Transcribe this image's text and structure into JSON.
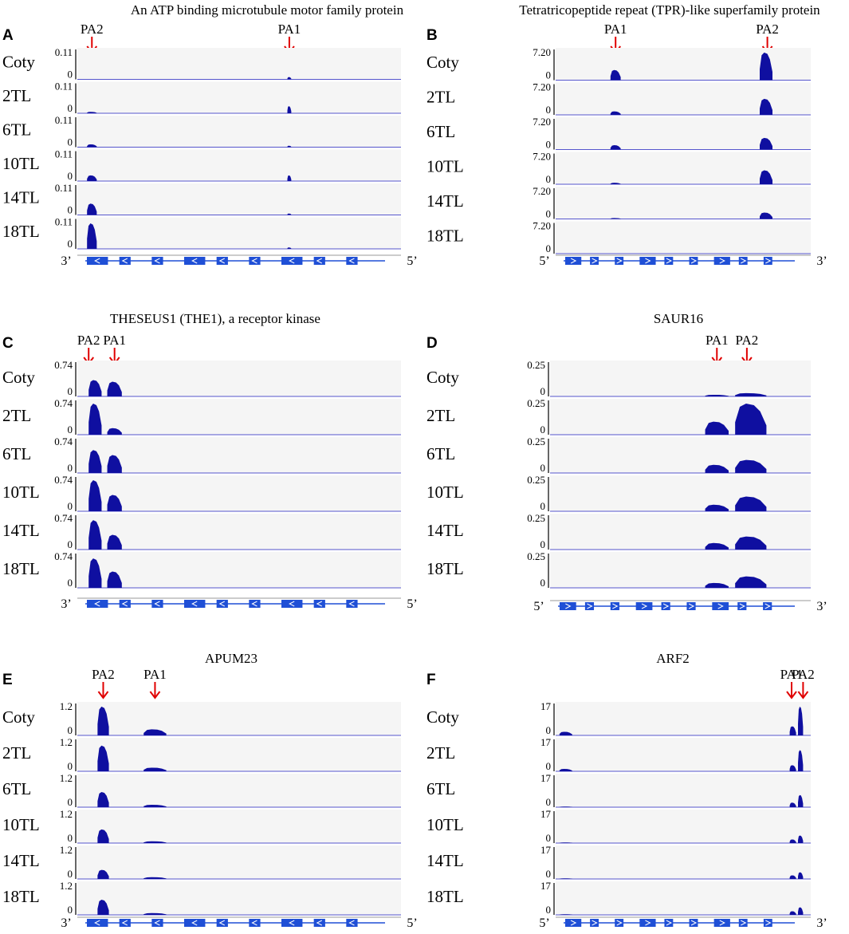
{
  "colors": {
    "track_bg": "#f5f5f5",
    "signal": "#0f0fa0",
    "baseline": "#5555cc",
    "gene": "#1f4fd6",
    "arrow": "#e00000"
  },
  "chart_data": [
    {
      "panel": "A",
      "type": "area",
      "title": "An ATP binding microtubule motor family protein",
      "ymax_label": "0.11",
      "ymin_label": "0",
      "samples": [
        "Coty",
        "2TL",
        "6TL",
        "10TL",
        "14TL",
        "18TL"
      ],
      "peaks": [
        {
          "label": "PA2",
          "pos": 0.045,
          "width": 0.03,
          "heights": [
            0.0,
            0.05,
            0.1,
            0.2,
            0.4,
            0.9
          ]
        },
        {
          "label": "PA1",
          "pos": 0.655,
          "width": 0.012,
          "heights": [
            0.08,
            0.25,
            0.05,
            0.2,
            0.05,
            0.05
          ]
        }
      ],
      "arrows": [
        {
          "label": "PA2",
          "pos": 0.045
        },
        {
          "label": "PA1",
          "pos": 0.655
        }
      ],
      "gene": {
        "orientation": "reverse",
        "left_end": "3’",
        "right_end": "5’"
      }
    },
    {
      "panel": "B",
      "type": "area",
      "title": "Tetratricopeptide repeat (TPR)-like superfamily protein",
      "ymax_label": "7.20",
      "ymin_label": "0",
      "samples": [
        "Coty",
        "2TL",
        "6TL",
        "10TL",
        "14TL",
        "18TL"
      ],
      "peaks": [
        {
          "label": "PA1",
          "pos": 0.235,
          "width": 0.04,
          "heights": [
            0.35,
            0.12,
            0.15,
            0.05,
            0.03,
            0.0
          ]
        },
        {
          "label": "PA2",
          "pos": 0.825,
          "width": 0.05,
          "heights": [
            0.95,
            0.55,
            0.4,
            0.48,
            0.22,
            0.0
          ]
        }
      ],
      "arrows": [
        {
          "label": "PA1",
          "pos": 0.235
        },
        {
          "label": "PA2",
          "pos": 0.83
        }
      ],
      "gene": {
        "orientation": "forward",
        "left_end": "5’",
        "right_end": "3’"
      }
    },
    {
      "panel": "C",
      "type": "area",
      "title": "THESEUS1 (THE1), a receptor kinase",
      "ymax_label": "0.74",
      "ymin_label": "0",
      "samples": [
        "Coty",
        "2TL",
        "6TL",
        "10TL",
        "14TL",
        "18TL"
      ],
      "peaks": [
        {
          "label": "PA2",
          "pos": 0.055,
          "width": 0.04,
          "heights": [
            0.5,
            0.95,
            0.7,
            0.95,
            0.9,
            0.9
          ]
        },
        {
          "label": "PA1",
          "pos": 0.115,
          "width": 0.045,
          "heights": [
            0.45,
            0.2,
            0.55,
            0.5,
            0.45,
            0.5
          ]
        }
      ],
      "arrows": [
        {
          "label": "PA2",
          "pos": 0.035
        },
        {
          "label": "PA1",
          "pos": 0.115
        }
      ],
      "gene": {
        "orientation": "reverse",
        "left_end": "3’",
        "right_end": "5’"
      }
    },
    {
      "panel": "D",
      "type": "area",
      "title": "SAUR16",
      "ymax_label": "0.25",
      "ymin_label": "0",
      "samples": [
        "Coty",
        "2TL",
        "6TL",
        "10TL",
        "14TL",
        "18TL"
      ],
      "peaks": [
        {
          "label": "PA1",
          "pos": 0.64,
          "width": 0.09,
          "heights": [
            0.05,
            0.4,
            0.25,
            0.2,
            0.2,
            0.15
          ]
        },
        {
          "label": "PA2",
          "pos": 0.77,
          "width": 0.12,
          "heights": [
            0.1,
            0.95,
            0.4,
            0.45,
            0.4,
            0.35
          ]
        }
      ],
      "arrows": [
        {
          "label": "PA1",
          "pos": 0.64
        },
        {
          "label": "PA2",
          "pos": 0.755
        }
      ],
      "gene": {
        "orientation": "forward",
        "left_end": "5’",
        "right_end": "3’"
      }
    },
    {
      "panel": "E",
      "type": "area",
      "title": "APUM23",
      "ymax_label": "1.2",
      "ymin_label": "0",
      "samples": [
        "Coty",
        "2TL",
        "6TL",
        "10TL",
        "14TL",
        "18TL"
      ],
      "peaks": [
        {
          "label": "PA2",
          "pos": 0.08,
          "width": 0.035,
          "heights": [
            0.95,
            0.85,
            0.5,
            0.45,
            0.3,
            0.5
          ]
        },
        {
          "label": "PA1",
          "pos": 0.24,
          "width": 0.07,
          "heights": [
            0.2,
            0.12,
            0.08,
            0.06,
            0.06,
            0.06
          ]
        }
      ],
      "arrows": [
        {
          "label": "PA2",
          "pos": 0.08
        },
        {
          "label": "PA1",
          "pos": 0.24
        }
      ],
      "gene": {
        "orientation": "reverse",
        "left_end": "3’",
        "right_end": "5’"
      }
    },
    {
      "panel": "F",
      "type": "area",
      "title": "ARF2",
      "ymax_label": "17",
      "ymin_label": "0",
      "samples": [
        "Coty",
        "2TL",
        "6TL",
        "10TL",
        "14TL",
        "18TL"
      ],
      "peaks": [
        {
          "label": "PA1",
          "pos": 0.93,
          "width": 0.025,
          "heights": [
            0.3,
            0.2,
            0.15,
            0.12,
            0.12,
            0.12
          ]
        },
        {
          "label": "PA2",
          "pos": 0.96,
          "width": 0.02,
          "heights": [
            0.95,
            0.7,
            0.4,
            0.25,
            0.22,
            0.25
          ]
        },
        {
          "label": "",
          "pos": 0.04,
          "width": 0.05,
          "heights": [
            0.12,
            0.08,
            0.02,
            0.02,
            0.02,
            0.02
          ]
        }
      ],
      "arrows": [
        {
          "label": "PA1",
          "pos": 0.925
        },
        {
          "label": "PA2",
          "pos": 0.97
        }
      ],
      "gene": {
        "orientation": "forward",
        "left_end": "5’",
        "right_end": "3’"
      }
    }
  ]
}
